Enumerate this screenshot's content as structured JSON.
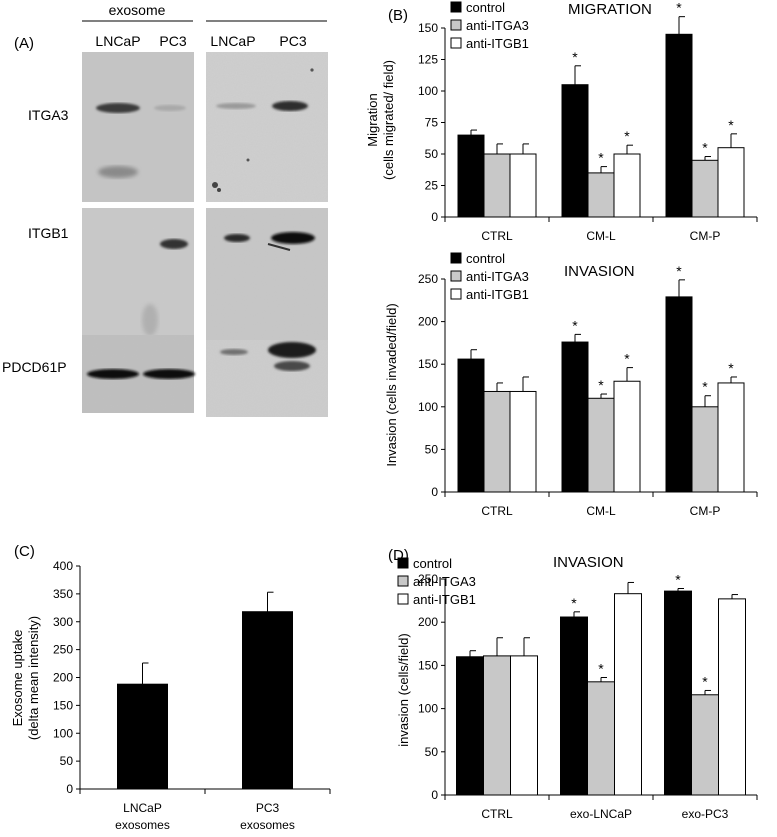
{
  "panel_labels": {
    "a": "(A)",
    "b": "(B)",
    "c": "(C)",
    "d": "(D)"
  },
  "blot": {
    "header": "exosome",
    "left_lanes": [
      "LNCaP",
      "PC3"
    ],
    "right_lanes": [
      "LNCaP",
      "PC3"
    ],
    "rows": [
      "ITGA3",
      "ITGB1",
      "PDCD61P"
    ]
  },
  "colors": {
    "control": "#000000",
    "anti_itga3": "#c8c8c8",
    "anti_itgb1": "#ffffff",
    "stroke": "#000000"
  },
  "chart_data": [
    {
      "id": "migration",
      "type": "bar",
      "title": "MIGRATION",
      "ylabel": [
        "Migration",
        "(cells migrated/ field)"
      ],
      "categories": [
        "CTRL",
        "CM-L",
        "CM-P"
      ],
      "ylim": [
        0,
        150
      ],
      "yticks": [
        0,
        25,
        50,
        75,
        100,
        125,
        150
      ],
      "legend": "top-left",
      "series": [
        {
          "name": "control",
          "values": [
            65,
            105,
            145
          ],
          "errors": [
            4,
            15,
            14
          ],
          "stars": [
            false,
            true,
            true
          ]
        },
        {
          "name": "anti-ITGA3",
          "values": [
            50,
            35,
            45
          ],
          "errors": [
            8,
            5,
            3
          ],
          "stars": [
            false,
            true,
            true
          ]
        },
        {
          "name": "anti-ITGB1",
          "values": [
            50,
            50,
            55
          ],
          "errors": [
            8,
            7,
            11
          ],
          "stars": [
            false,
            true,
            true
          ]
        }
      ]
    },
    {
      "id": "invasion_b",
      "type": "bar",
      "title": "INVASION",
      "ylabel": [
        "Invasion (cells invaded/field)"
      ],
      "categories": [
        "CTRL",
        "CM-L",
        "CM-P"
      ],
      "ylim": [
        0,
        250
      ],
      "yticks": [
        0,
        50,
        100,
        150,
        200,
        250
      ],
      "legend": "top-left",
      "series": [
        {
          "name": "control",
          "values": [
            156,
            176,
            229
          ],
          "errors": [
            11,
            9,
            20
          ],
          "stars": [
            false,
            true,
            true
          ]
        },
        {
          "name": "anti-ITGA3",
          "values": [
            118,
            110,
            100
          ],
          "errors": [
            10,
            5,
            13
          ],
          "stars": [
            false,
            true,
            true
          ]
        },
        {
          "name": "anti-ITGB1",
          "values": [
            118,
            130,
            128
          ],
          "errors": [
            17,
            16,
            7
          ],
          "stars": [
            false,
            true,
            true
          ]
        }
      ]
    },
    {
      "id": "uptake",
      "type": "bar",
      "ylabel": [
        "Exosome uptake",
        "(delta mean intensity)"
      ],
      "categories": [
        [
          "LNCaP",
          "exosomes"
        ],
        [
          "PC3",
          "exosomes"
        ]
      ],
      "ylim": [
        0,
        400
      ],
      "yticks": [
        0,
        50,
        100,
        150,
        200,
        250,
        300,
        350,
        400
      ],
      "series": [
        {
          "values": [
            188,
            318
          ],
          "errors": [
            38,
            35
          ]
        }
      ]
    },
    {
      "id": "invasion_d",
      "type": "bar",
      "title": "INVASION",
      "ylabel": [
        "invasion (cells/field)"
      ],
      "categories": [
        "CTRL",
        "exo-LNCaP",
        "exo-PC3"
      ],
      "ylim": [
        0,
        250
      ],
      "yticks": [
        0,
        50,
        100,
        150,
        200,
        250
      ],
      "legend": "top-left",
      "series": [
        {
          "name": "control",
          "values": [
            160,
            206,
            236
          ],
          "errors": [
            7,
            6,
            3
          ],
          "stars": [
            false,
            true,
            true
          ]
        },
        {
          "name": "anti-ITGA3",
          "values": [
            161,
            131,
            116
          ],
          "errors": [
            21,
            5,
            5
          ],
          "stars": [
            false,
            true,
            true
          ]
        },
        {
          "name": "anti-ITGB1",
          "values": [
            161,
            233,
            227
          ],
          "errors": [
            21,
            13,
            5
          ],
          "stars": [
            false,
            false,
            false
          ]
        }
      ]
    }
  ]
}
